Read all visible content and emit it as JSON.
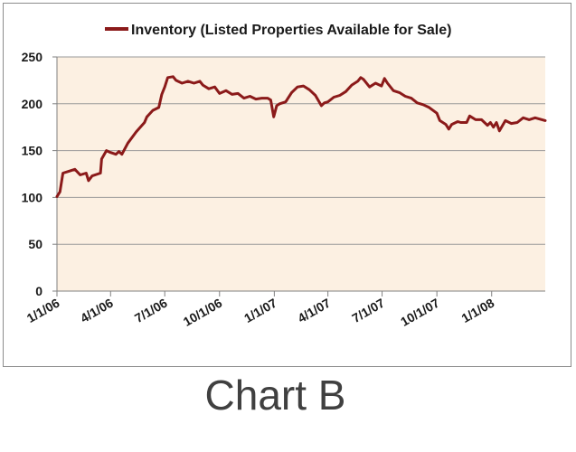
{
  "caption": "Chart B",
  "colors": {
    "series": "#8b1a1a",
    "plot_background": "#fcf0e2",
    "grid": "#9a9a9a",
    "axis": "#808080"
  },
  "chart_data": {
    "type": "line",
    "legend": {
      "position": "top"
    },
    "grid": true,
    "ylim": [
      0,
      250
    ],
    "y_ticks": [
      "0",
      "50",
      "100",
      "150",
      "200",
      "250"
    ],
    "x_ticks": [
      "1/1/06",
      "4/1/06",
      "7/1/06",
      "10/1/06",
      "1/1/07",
      "4/1/07",
      "7/1/07",
      "10/1/07",
      "1/1/08"
    ],
    "x_range": [
      "2006-01-01",
      "2008-03-31"
    ],
    "series": [
      {
        "name": "Inventory (Listed Properties Available for Sale)",
        "points": [
          [
            "2006-01-01",
            101
          ],
          [
            "2006-01-06",
            106
          ],
          [
            "2006-01-11",
            126
          ],
          [
            "2006-01-21",
            128
          ],
          [
            "2006-01-31",
            130
          ],
          [
            "2006-02-09",
            124
          ],
          [
            "2006-02-19",
            126
          ],
          [
            "2006-02-23",
            118
          ],
          [
            "2006-03-01",
            123
          ],
          [
            "2006-03-15",
            126
          ],
          [
            "2006-03-17",
            141
          ],
          [
            "2006-03-25",
            150
          ],
          [
            "2006-04-01",
            148
          ],
          [
            "2006-04-10",
            146
          ],
          [
            "2006-04-15",
            149
          ],
          [
            "2006-04-20",
            146
          ],
          [
            "2006-04-30",
            158
          ],
          [
            "2006-05-14",
            170
          ],
          [
            "2006-05-28",
            180
          ],
          [
            "2006-06-01",
            186
          ],
          [
            "2006-06-11",
            193
          ],
          [
            "2006-06-21",
            196
          ],
          [
            "2006-06-26",
            210
          ],
          [
            "2006-07-01",
            218
          ],
          [
            "2006-07-06",
            228
          ],
          [
            "2006-07-15",
            229
          ],
          [
            "2006-07-20",
            225
          ],
          [
            "2006-07-30",
            222
          ],
          [
            "2006-08-09",
            224
          ],
          [
            "2006-08-19",
            222
          ],
          [
            "2006-08-29",
            224
          ],
          [
            "2006-09-03",
            220
          ],
          [
            "2006-09-13",
            216
          ],
          [
            "2006-09-23",
            218
          ],
          [
            "2006-10-01",
            211
          ],
          [
            "2006-10-12",
            214
          ],
          [
            "2006-10-22",
            210
          ],
          [
            "2006-11-01",
            211
          ],
          [
            "2006-11-11",
            206
          ],
          [
            "2006-11-21",
            208
          ],
          [
            "2006-12-01",
            205
          ],
          [
            "2006-12-11",
            206
          ],
          [
            "2006-12-21",
            206
          ],
          [
            "2006-12-26",
            204
          ],
          [
            "2006-12-31",
            186
          ],
          [
            "2007-01-05",
            198
          ],
          [
            "2007-01-10",
            200
          ],
          [
            "2007-01-20",
            202
          ],
          [
            "2007-01-30",
            212
          ],
          [
            "2007-02-09",
            218
          ],
          [
            "2007-02-19",
            219
          ],
          [
            "2007-03-01",
            215
          ],
          [
            "2007-03-11",
            209
          ],
          [
            "2007-03-21",
            198
          ],
          [
            "2007-03-26",
            201
          ],
          [
            "2007-04-01",
            202
          ],
          [
            "2007-04-11",
            207
          ],
          [
            "2007-04-21",
            209
          ],
          [
            "2007-05-01",
            213
          ],
          [
            "2007-05-11",
            220
          ],
          [
            "2007-05-21",
            224
          ],
          [
            "2007-05-26",
            228
          ],
          [
            "2007-05-31",
            226
          ],
          [
            "2007-06-10",
            218
          ],
          [
            "2007-06-20",
            222
          ],
          [
            "2007-06-30",
            219
          ],
          [
            "2007-07-05",
            227
          ],
          [
            "2007-07-10",
            222
          ],
          [
            "2007-07-20",
            214
          ],
          [
            "2007-07-30",
            212
          ],
          [
            "2007-08-09",
            208
          ],
          [
            "2007-08-19",
            206
          ],
          [
            "2007-08-29",
            201
          ],
          [
            "2007-09-08",
            199
          ],
          [
            "2007-09-18",
            196
          ],
          [
            "2007-10-01",
            190
          ],
          [
            "2007-10-06",
            182
          ],
          [
            "2007-10-16",
            178
          ],
          [
            "2007-10-21",
            173
          ],
          [
            "2007-10-26",
            178
          ],
          [
            "2007-11-05",
            181
          ],
          [
            "2007-11-10",
            180
          ],
          [
            "2007-11-20",
            180
          ],
          [
            "2007-11-25",
            187
          ],
          [
            "2007-12-05",
            183
          ],
          [
            "2007-12-15",
            183
          ],
          [
            "2007-12-25",
            177
          ],
          [
            "2007-12-30",
            180
          ],
          [
            "2008-01-04",
            175
          ],
          [
            "2008-01-09",
            180
          ],
          [
            "2008-01-14",
            171
          ],
          [
            "2008-01-24",
            182
          ],
          [
            "2008-02-03",
            179
          ],
          [
            "2008-02-13",
            180
          ],
          [
            "2008-02-23",
            185
          ],
          [
            "2008-03-04",
            183
          ],
          [
            "2008-03-14",
            185
          ],
          [
            "2008-03-31",
            182
          ]
        ]
      }
    ]
  }
}
